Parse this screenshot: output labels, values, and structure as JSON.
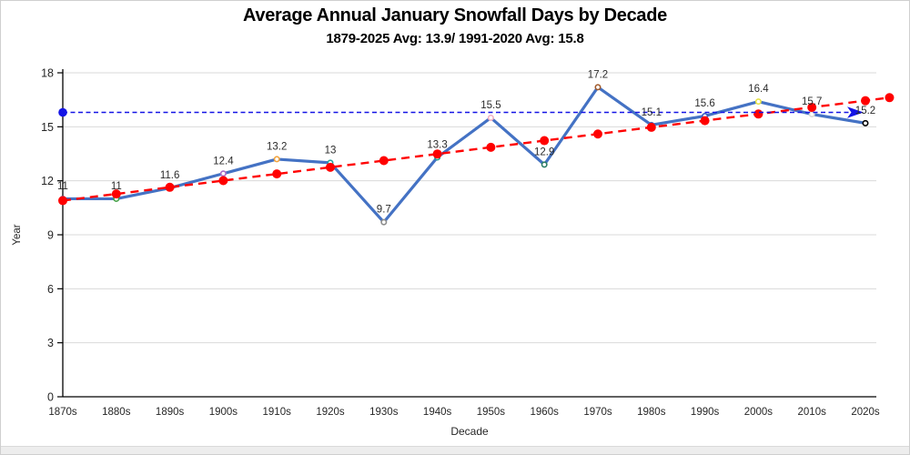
{
  "chart_data": {
    "type": "line",
    "title": "Average Annual January Snowfall Days by Decade",
    "subtitle": "1879-2025 Avg: 13.9/ 1991-2020 Avg: 15.8",
    "xlabel": "Decade",
    "ylabel": "Year",
    "ylim": [
      0,
      18
    ],
    "yticks": [
      0,
      3,
      6,
      9,
      12,
      15,
      18
    ],
    "grid": true,
    "legend_position": "none",
    "categories": [
      "1870s",
      "1880s",
      "1890s",
      "1900s",
      "1910s",
      "1920s",
      "1930s",
      "1940s",
      "1950s",
      "1960s",
      "1970s",
      "1980s",
      "1990s",
      "2000s",
      "2010s",
      "2020s"
    ],
    "series": [
      {
        "name": "january-snowfall-days",
        "type": "line-with-markers",
        "color": "#4472c4",
        "values": [
          11,
          11,
          11.6,
          12.4,
          13.2,
          13,
          9.7,
          13.3,
          15.5,
          12.9,
          17.2,
          15.1,
          15.6,
          16.4,
          15.7,
          15.2
        ],
        "labels": [
          "11",
          "11",
          "11.6",
          "12.4",
          "13.2",
          "13",
          "9.7",
          "13.3",
          "15.5",
          "12.9",
          "17.2",
          "15.1",
          "15.6",
          "16.4",
          "15.7",
          "15.2"
        ],
        "marker_colors": [
          "#4472c4",
          "#44a248",
          "#4472c4",
          "#a86bc9",
          "#f2a33c",
          "#27a59f",
          "#8c8c8c",
          "#1f9e8e",
          "#f2afc1",
          "#2b7d66",
          "#a15a2a",
          "#4472c4",
          "#3a5fc0",
          "#e6e24a",
          "#d9d9d9",
          "#000000"
        ]
      },
      {
        "name": "linear-trendline",
        "type": "dashed-line-with-dots",
        "color": "#ff0000",
        "values": [
          10.9,
          11.27,
          11.64,
          12.01,
          12.38,
          12.75,
          13.12,
          13.49,
          13.86,
          14.23,
          14.6,
          14.97,
          15.34,
          15.71,
          16.08,
          16.45
        ],
        "extension": {
          "x_offset": 0.45,
          "value": 16.62
        }
      },
      {
        "name": "avg-1991-2020-reference",
        "type": "dashed-horizontal-line",
        "color": "#1414e6",
        "value": 15.8,
        "start_marker": "filled-circle",
        "end_marker": "arrow-right"
      }
    ],
    "colors": {
      "grid": "#d9d9d9",
      "axis": "#000000",
      "tick_label": "#262626",
      "data_label": "#2b2b2b"
    }
  }
}
